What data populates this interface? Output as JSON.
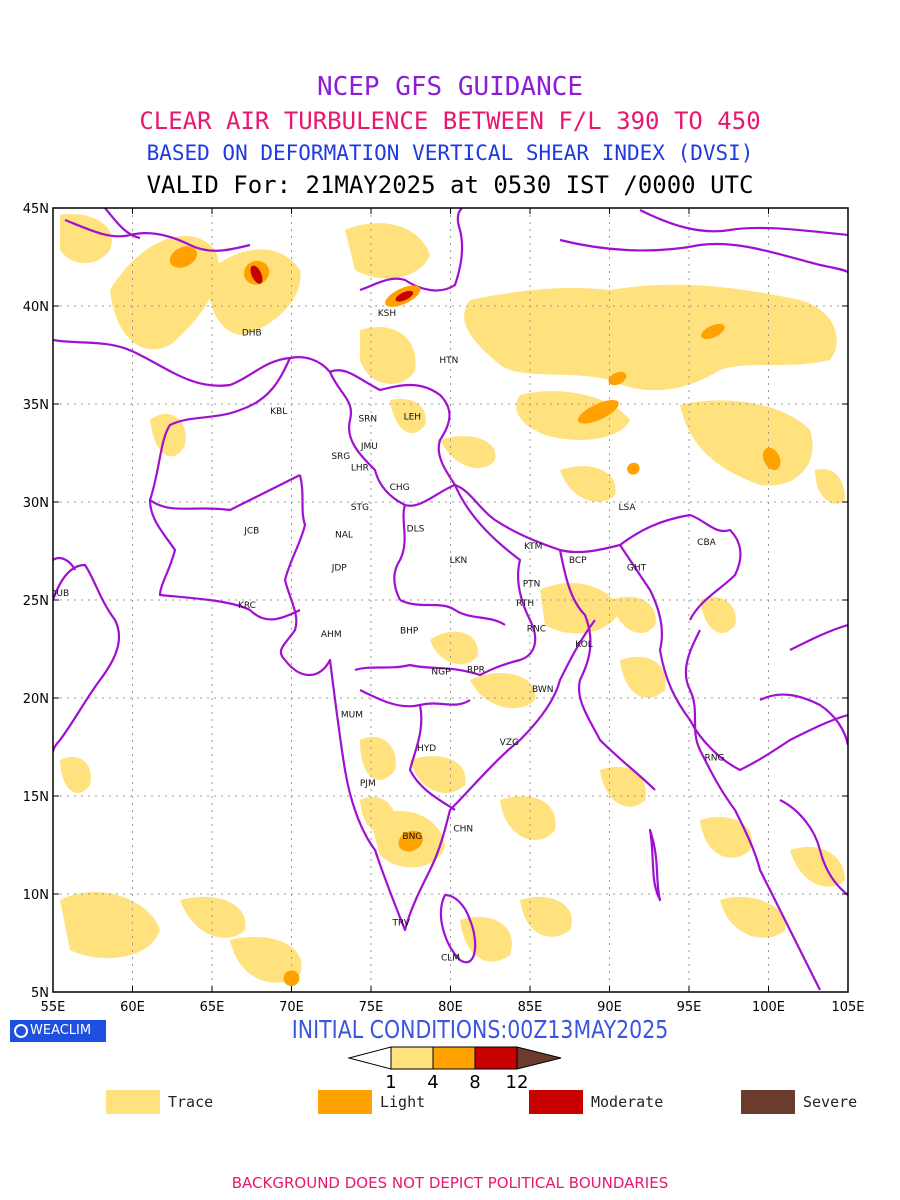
{
  "titles": {
    "line1": "NCEP GFS GUIDANCE",
    "line2": "CLEAR AIR TURBULENCE BETWEEN F/L 390 TO 450",
    "line3": "BASED ON DEFORMATION VERTICAL SHEAR INDEX (DVSI)",
    "line4": "VALID For: 21MAY2025 at 0530 IST /0000 UTC"
  },
  "colors": {
    "line1": "#8a1fd6",
    "line2": "#e8176f",
    "line3": "#1f3be0",
    "init": "#3a55e0",
    "footer": "#e8176f",
    "boundary": "#a010d0",
    "grid": "#9a9a9a"
  },
  "map": {
    "lon_range": [
      55,
      105
    ],
    "lat_range": [
      5,
      45
    ],
    "lon_ticks": [
      "55E",
      "60E",
      "65E",
      "70E",
      "75E",
      "80E",
      "85E",
      "90E",
      "95E",
      "100E",
      "105E"
    ],
    "lat_ticks": [
      "5N",
      "10N",
      "15N",
      "20N",
      "25N",
      "30N",
      "35N",
      "40N",
      "45N"
    ],
    "stations": [
      {
        "code": "DHB",
        "lon": 67.5,
        "lat": 38.5
      },
      {
        "code": "KSH",
        "lon": 76.0,
        "lat": 39.5
      },
      {
        "code": "HTN",
        "lon": 79.9,
        "lat": 37.1
      },
      {
        "code": "KBL",
        "lon": 69.2,
        "lat": 34.5
      },
      {
        "code": "SRN",
        "lon": 74.8,
        "lat": 34.1
      },
      {
        "code": "LEH",
        "lon": 77.6,
        "lat": 34.2
      },
      {
        "code": "JMU",
        "lon": 74.9,
        "lat": 32.7
      },
      {
        "code": "SRG",
        "lon": 73.1,
        "lat": 32.2
      },
      {
        "code": "LHR",
        "lon": 74.3,
        "lat": 31.6
      },
      {
        "code": "CHG",
        "lon": 76.8,
        "lat": 30.6
      },
      {
        "code": "STG",
        "lon": 74.3,
        "lat": 29.6
      },
      {
        "code": "LSA",
        "lon": 91.1,
        "lat": 29.6
      },
      {
        "code": "JCB",
        "lon": 67.5,
        "lat": 28.4
      },
      {
        "code": "NAL",
        "lon": 73.3,
        "lat": 28.2
      },
      {
        "code": "DLS",
        "lon": 77.8,
        "lat": 28.5
      },
      {
        "code": "KTM",
        "lon": 85.2,
        "lat": 27.6
      },
      {
        "code": "CBA",
        "lon": 96.1,
        "lat": 27.8
      },
      {
        "code": "BCP",
        "lon": 88.0,
        "lat": 26.9
      },
      {
        "code": "GHT",
        "lon": 91.7,
        "lat": 26.5
      },
      {
        "code": "JDP",
        "lon": 73.0,
        "lat": 26.5
      },
      {
        "code": "LKN",
        "lon": 80.5,
        "lat": 26.9
      },
      {
        "code": "PTN",
        "lon": 85.1,
        "lat": 25.7
      },
      {
        "code": "DUB",
        "lon": 55.4,
        "lat": 25.2
      },
      {
        "code": "KRC",
        "lon": 67.2,
        "lat": 24.6
      },
      {
        "code": "RTH",
        "lon": 84.7,
        "lat": 24.7
      },
      {
        "code": "AHM",
        "lon": 72.5,
        "lat": 23.1
      },
      {
        "code": "BHP",
        "lon": 77.4,
        "lat": 23.3
      },
      {
        "code": "RNC",
        "lon": 85.4,
        "lat": 23.4
      },
      {
        "code": "KOL",
        "lon": 88.4,
        "lat": 22.6
      },
      {
        "code": "NGP",
        "lon": 79.4,
        "lat": 21.2
      },
      {
        "code": "RPR",
        "lon": 81.6,
        "lat": 21.3
      },
      {
        "code": "BWN",
        "lon": 85.8,
        "lat": 20.3
      },
      {
        "code": "MUM",
        "lon": 73.8,
        "lat": 19.0
      },
      {
        "code": "HYD",
        "lon": 78.5,
        "lat": 17.3
      },
      {
        "code": "VZG",
        "lon": 83.7,
        "lat": 17.6
      },
      {
        "code": "RNG",
        "lon": 96.6,
        "lat": 16.8
      },
      {
        "code": "PJM",
        "lon": 74.8,
        "lat": 15.5
      },
      {
        "code": "CHN",
        "lon": 80.8,
        "lat": 13.2
      },
      {
        "code": "BNG",
        "lon": 77.6,
        "lat": 12.8
      },
      {
        "code": "TRV",
        "lon": 76.9,
        "lat": 8.4
      },
      {
        "code": "CLM",
        "lon": 80.0,
        "lat": 6.6
      }
    ],
    "turbulence_areas": [
      {
        "level": "light",
        "lon": 63.2,
        "lat": 42.5,
        "rx": 0.9,
        "ry": 0.5
      },
      {
        "level": "light",
        "lon": 67.8,
        "lat": 41.7,
        "rx": 0.8,
        "ry": 0.6
      },
      {
        "level": "moderate",
        "lon": 67.8,
        "lat": 41.6,
        "rx": 0.3,
        "ry": 0.5
      },
      {
        "level": "light",
        "lon": 77.0,
        "lat": 40.5,
        "rx": 1.2,
        "ry": 0.4
      },
      {
        "level": "moderate",
        "lon": 77.1,
        "lat": 40.5,
        "rx": 0.6,
        "ry": 0.2
      },
      {
        "level": "light",
        "lon": 96.5,
        "lat": 38.7,
        "rx": 0.8,
        "ry": 0.3
      },
      {
        "level": "light",
        "lon": 90.5,
        "lat": 36.3,
        "rx": 0.6,
        "ry": 0.3
      },
      {
        "level": "light",
        "lon": 89.3,
        "lat": 34.6,
        "rx": 1.4,
        "ry": 0.4
      },
      {
        "level": "light",
        "lon": 100.2,
        "lat": 32.2,
        "rx": 0.5,
        "ry": 0.6
      },
      {
        "level": "light",
        "lon": 91.5,
        "lat": 31.7,
        "rx": 0.4,
        "ry": 0.3
      },
      {
        "level": "light",
        "lon": 77.5,
        "lat": 12.7,
        "rx": 0.8,
        "ry": 0.5
      },
      {
        "level": "light",
        "lon": 70.0,
        "lat": 5.7,
        "rx": 0.5,
        "ry": 0.4
      }
    ]
  },
  "colorbar": {
    "ticks": [
      "1",
      "4",
      "8",
      "12"
    ],
    "colors": [
      "#ffe27e",
      "#ffa200",
      "#c80000",
      "#6b3b2e"
    ]
  },
  "init_conditions": "INITIAL CONDITIONS:00Z13MAY2025",
  "badge": "WEACLIM",
  "legend": [
    {
      "label": "Trace",
      "color": "#ffe27e"
    },
    {
      "label": "Light",
      "color": "#ffa200"
    },
    {
      "label": "Moderate",
      "color": "#c80000"
    },
    {
      "label": "Severe",
      "color": "#6b3b2e"
    }
  ],
  "footer": "BACKGROUND DOES NOT DEPICT POLITICAL BOUNDARIES"
}
